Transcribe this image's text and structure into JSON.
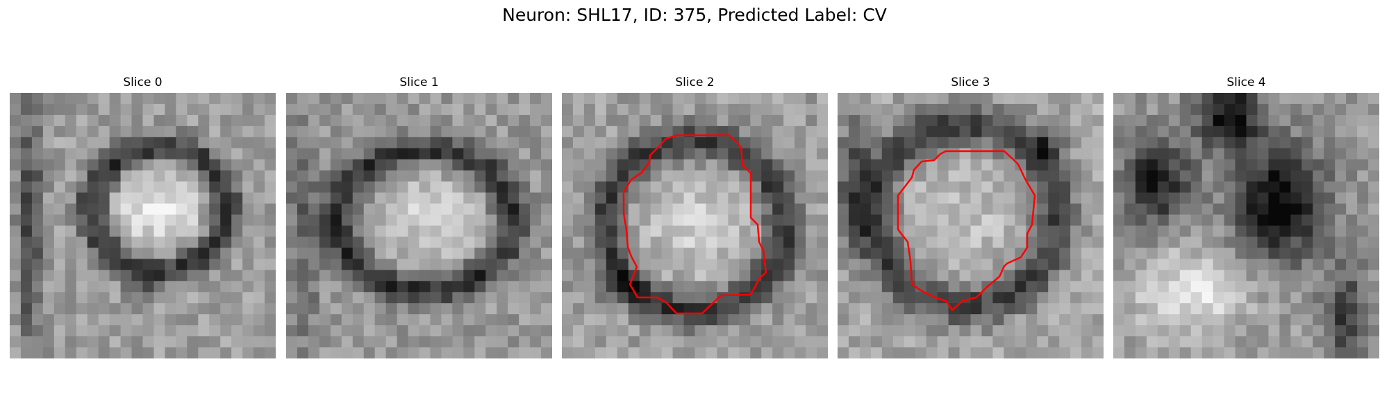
{
  "title": "Neuron: SHL17, ID: 375, Predicted Label: CV",
  "panels": [
    {
      "title": "Slice 0",
      "contour": false
    },
    {
      "title": "Slice 1",
      "contour": false
    },
    {
      "title": "Slice 2",
      "contour": true
    },
    {
      "title": "Slice 3",
      "contour": true
    },
    {
      "title": "Slice 4",
      "contour": false
    }
  ],
  "colors": {
    "contour": "#ff0000",
    "background": "#ffffff"
  },
  "image_description": "Five grayscale microscopy slices of a neuron; slices 2 and 3 show red segmentation contours around the cell body."
}
